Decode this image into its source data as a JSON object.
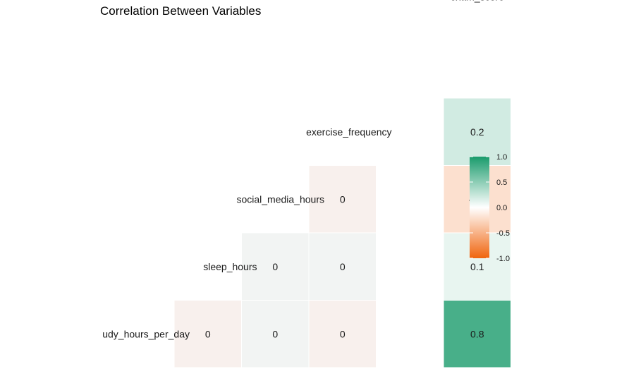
{
  "chart_data": {
    "type": "heatmap",
    "title": "Correlation Between Variables",
    "variables": [
      "udy_hours_per_day",
      "sleep_hours",
      "social_media_hours",
      "exercise_frequency",
      "exam_score"
    ],
    "cells": [
      {
        "row": "udy_hours_per_day",
        "col": "udy_hours_per_day",
        "value": 0,
        "label": "0"
      },
      {
        "row": "udy_hours_per_day",
        "col": "sleep_hours",
        "value": 0,
        "label": "0"
      },
      {
        "row": "udy_hours_per_day",
        "col": "social_media_hours",
        "value": 0,
        "label": "0"
      },
      {
        "row": "udy_hours_per_day",
        "col": "exam_score",
        "value": 0.8,
        "label": "0.8"
      },
      {
        "row": "sleep_hours",
        "col": "sleep_hours",
        "value": 0,
        "label": "0"
      },
      {
        "row": "sleep_hours",
        "col": "social_media_hours",
        "value": 0,
        "label": "0"
      },
      {
        "row": "sleep_hours",
        "col": "exam_score",
        "value": 0.1,
        "label": "0.1"
      },
      {
        "row": "social_media_hours",
        "col": "social_media_hours",
        "value": 0,
        "label": "0"
      },
      {
        "row": "social_media_hours",
        "col": "exam_score",
        "value": -0.2,
        "label": "-0.2"
      },
      {
        "row": "exercise_frequency",
        "col": "exam_score",
        "value": 0.2,
        "label": "0.2"
      }
    ],
    "legend": {
      "range": [
        -1.0,
        1.0
      ],
      "ticks": [
        "1.0",
        "0.5",
        "0.0",
        "-0.5",
        "-1.0"
      ],
      "placement": "right"
    },
    "colors": {
      "high": "#1a9b6c",
      "mid": "#ffffff",
      "low": "#f0650e",
      "cell_border": "#ffffff"
    }
  }
}
